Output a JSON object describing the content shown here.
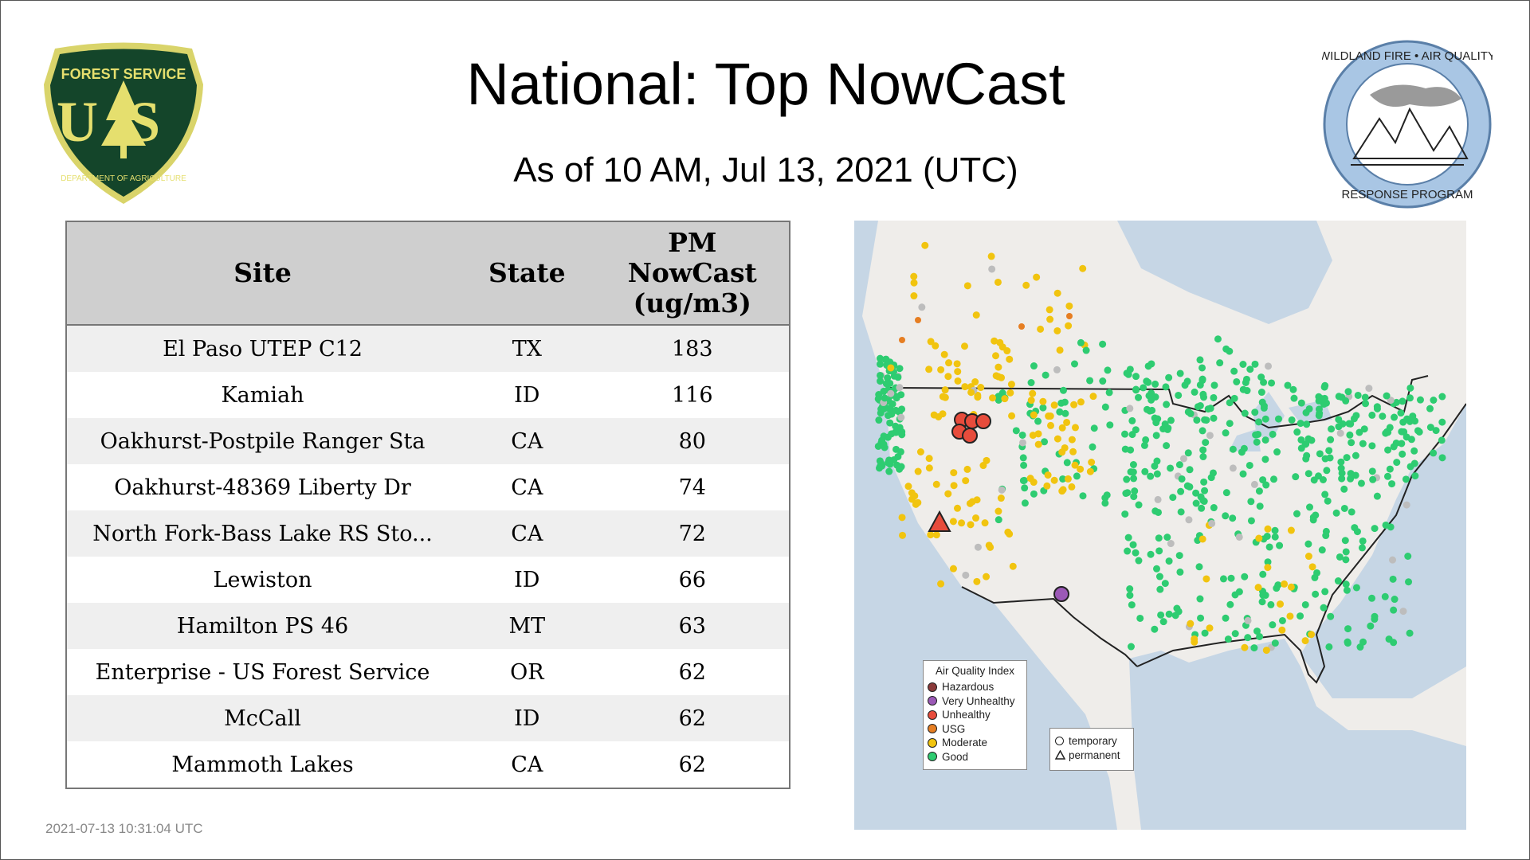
{
  "header": {
    "title": "National: Top NowCast",
    "subtitle": "As of 10 AM, Jul 13, 2021 (UTC)"
  },
  "logos": {
    "left": {
      "text_top": "FOREST SERVICE",
      "text_mid": "US",
      "text_bottom": "DEPARTMENT OF AGRICULTURE"
    },
    "right": {
      "text_top": "WILDLAND FIRE • AIR QUALITY",
      "text_bottom": "RESPONSE PROGRAM"
    }
  },
  "table": {
    "columns": [
      "Site",
      "State",
      "PM NowCast (ug/m3)"
    ],
    "column_lines": [
      [
        "Site"
      ],
      [
        "State"
      ],
      [
        "PM",
        "NowCast",
        "(ug/m3)"
      ]
    ],
    "rows": [
      [
        "El Paso UTEP C12",
        "TX",
        "183"
      ],
      [
        "Kamiah",
        "ID",
        "116"
      ],
      [
        "Oakhurst-Postpile Ranger Sta",
        "CA",
        "80"
      ],
      [
        "Oakhurst-48369 Liberty Dr",
        "CA",
        "74"
      ],
      [
        "North Fork-Bass Lake RS Sto...",
        "CA",
        "72"
      ],
      [
        "Lewiston",
        "ID",
        "66"
      ],
      [
        "Hamilton PS 46",
        "MT",
        "63"
      ],
      [
        "Enterprise - US Forest Service",
        "OR",
        "62"
      ],
      [
        "McCall",
        "ID",
        "62"
      ],
      [
        "Mammoth Lakes",
        "CA",
        "62"
      ]
    ]
  },
  "map": {
    "legend_title": "Air Quality Index",
    "aqi": [
      {
        "label": "Hazardous",
        "color": "#8b3a3a"
      },
      {
        "label": "Very Unhealthy",
        "color": "#9b59b6"
      },
      {
        "label": "Unhealthy",
        "color": "#e74c3c"
      },
      {
        "label": "USG",
        "color": "#e67e22"
      },
      {
        "label": "Moderate",
        "color": "#f1c40f"
      },
      {
        "label": "Good",
        "color": "#2ecc71"
      }
    ],
    "shapes": [
      {
        "label": "temporary",
        "icon": "circle-icon"
      },
      {
        "label": "permanent",
        "icon": "triangle-icon"
      }
    ],
    "colors": {
      "land": "#efedea",
      "water": "#c6d6e5",
      "no_data": "#bdbdbd"
    }
  },
  "footer": {
    "timestamp": "2021-07-13 10:31:04 UTC"
  }
}
